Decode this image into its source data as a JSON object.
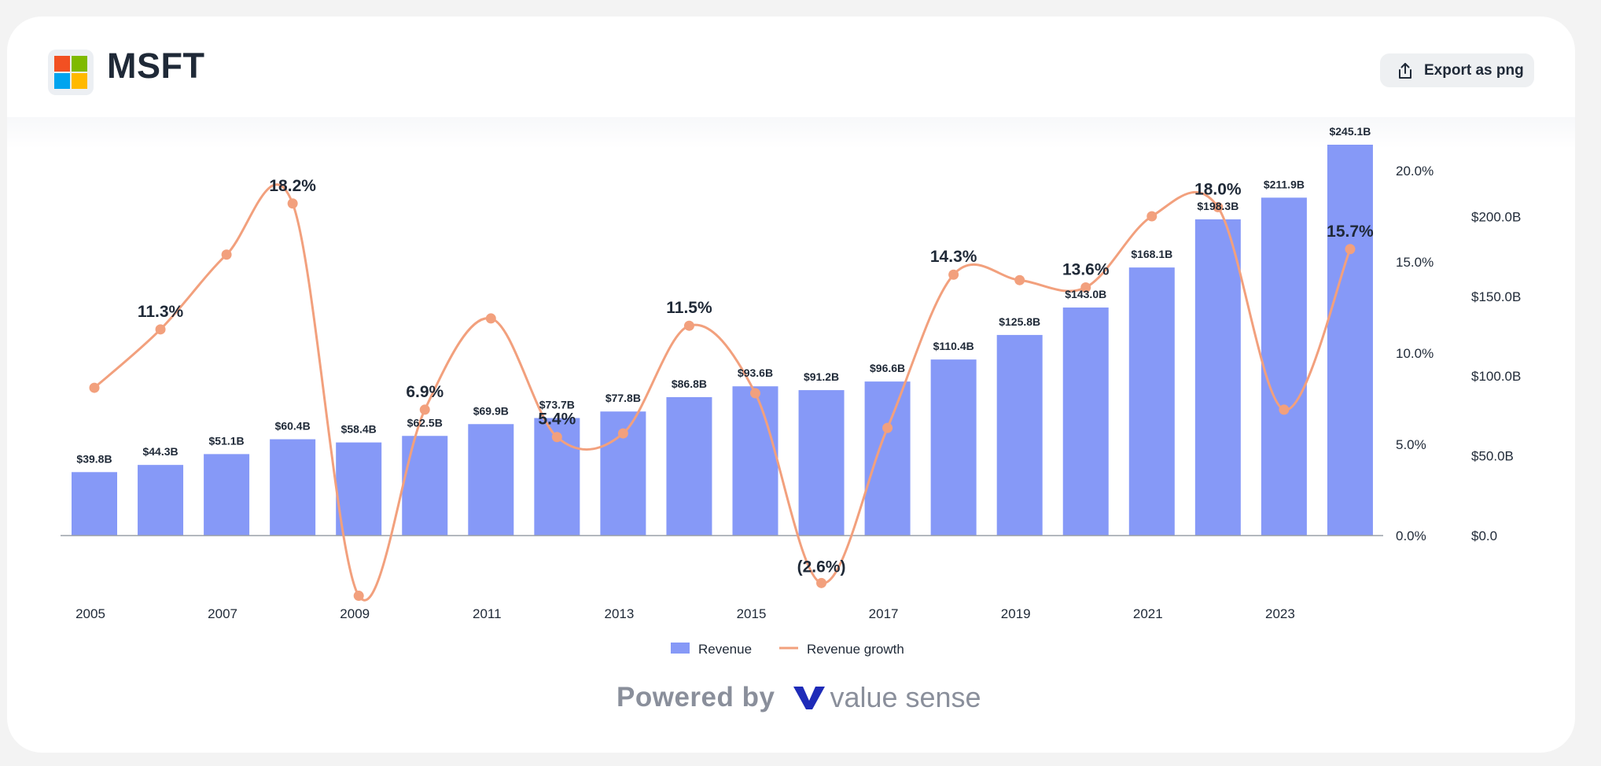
{
  "header": {
    "ticker": "MSFT",
    "export_label": "Export as png"
  },
  "footer": {
    "powered_label": "Powered by",
    "brand_name": "value sense"
  },
  "colors": {
    "revenue_bar": "#8699f7",
    "growth_line": "#f2a07d",
    "logo_red": "#f25022",
    "logo_green": "#7fba00",
    "logo_blue": "#00a4ef",
    "logo_yellow": "#ffb900",
    "brand_mark": "#1e2bb8"
  },
  "chart_data": {
    "type": "bar",
    "years": [
      2005,
      2006,
      2007,
      2008,
      2009,
      2010,
      2011,
      2012,
      2013,
      2014,
      2015,
      2016,
      2017,
      2018,
      2019,
      2020,
      2021,
      2022,
      2023,
      2024
    ],
    "x_tick_labels": [
      "2005",
      "2007",
      "2009",
      "2011",
      "2013",
      "2015",
      "2017",
      "2019",
      "2021",
      "2023"
    ],
    "series": [
      {
        "name": "Revenue",
        "type": "bar",
        "axis": "right",
        "unit": "USD billions",
        "values": [
          39.8,
          44.3,
          51.1,
          60.4,
          58.4,
          62.5,
          69.9,
          73.7,
          77.8,
          86.8,
          93.6,
          91.2,
          96.6,
          110.4,
          125.8,
          143.0,
          168.1,
          198.3,
          211.9,
          245.1
        ],
        "labels": [
          "$39.8B",
          "$44.3B",
          "$51.1B",
          "$60.4B",
          "$58.4B",
          "$62.5B",
          "$69.9B",
          "$73.7B",
          "$77.8B",
          "$86.8B",
          "$93.6B",
          "$91.2B",
          "$96.6B",
          "$110.4B",
          "$125.8B",
          "$143.0B",
          "$168.1B",
          "$198.3B",
          "$211.9B",
          "$245.1B"
        ]
      },
      {
        "name": "Revenue growth",
        "type": "line",
        "axis": "left-inner",
        "unit": "percent",
        "values": [
          8.1,
          11.3,
          15.4,
          18.2,
          -3.3,
          6.9,
          11.9,
          5.4,
          5.6,
          11.5,
          7.8,
          -2.6,
          5.9,
          14.3,
          14.0,
          13.6,
          17.5,
          18.0,
          6.9,
          15.7
        ],
        "labeled_points": [
          {
            "year": 2006,
            "label": "11.3%"
          },
          {
            "year": 2008,
            "label": "18.2%"
          },
          {
            "year": 2010,
            "label": "6.9%"
          },
          {
            "year": 2012,
            "label": "5.4%"
          },
          {
            "year": 2014,
            "label": "11.5%"
          },
          {
            "year": 2016,
            "label": "(2.6%)"
          },
          {
            "year": 2018,
            "label": "14.3%"
          },
          {
            "year": 2020,
            "label": "13.6%"
          },
          {
            "year": 2022,
            "label": "18.0%"
          },
          {
            "year": 2024,
            "label": "15.7%"
          }
        ]
      }
    ],
    "growth_axis": {
      "ticks": [
        0,
        5,
        10,
        15,
        20
      ],
      "tick_labels": [
        "0.0%",
        "5.0%",
        "10.0%",
        "15.0%",
        "20.0%"
      ],
      "range": [
        -3.5,
        21
      ]
    },
    "revenue_axis": {
      "ticks": [
        0,
        50,
        100,
        150,
        200
      ],
      "tick_labels": [
        "$0.0",
        "$50.0B",
        "$100.0B",
        "$150.0B",
        "$200.0B"
      ],
      "range": [
        0,
        245.1
      ]
    },
    "legend": {
      "position": "bottom-center",
      "items": [
        "Revenue",
        "Revenue growth"
      ]
    },
    "grid": false
  }
}
